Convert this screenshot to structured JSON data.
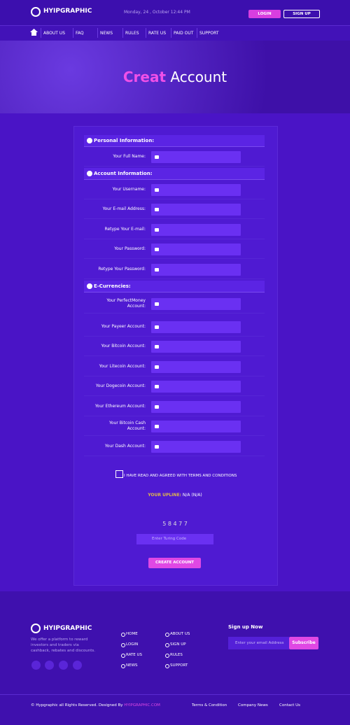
{
  "header": {
    "logo": "HYIPGRAPHIC",
    "date": "Monday, 24 , October 12:44 PM",
    "login": "LOGIN",
    "signup": "SIGN UP"
  },
  "nav": {
    "items": [
      "ABOUT US",
      "FAQ",
      "NEWS",
      "RULES",
      "RATE US",
      "PAID OUT",
      "SUPPORT"
    ]
  },
  "hero": {
    "title_accent": "Creat",
    "title_rest": "Account"
  },
  "form": {
    "sections": [
      {
        "title": "Personal Information:",
        "fields": [
          "Your Full Name:"
        ]
      },
      {
        "title": "Account Information:",
        "fields": [
          "Your Username:",
          "Your E-mail Address:",
          "Retype Your E-mail:",
          "Your Password:",
          "Retype Your Password:"
        ]
      },
      {
        "title": "E-Currencies:",
        "fields": [
          "Your PerfectMoney Account:",
          "Your Payeer Account:",
          "Your Bitcoin Account:",
          "Your Litecoin Account:",
          "Your Dogecoin Account:",
          "Your Ethereum Account:",
          "Your Bitcoin Cash Account:",
          "Your Dash Account:"
        ]
      }
    ],
    "terms": "I HAVE READ AND AGREED WITH TERMS AND CONDITIONS",
    "upline_label": "YOUR UPLINE:",
    "upline_value": "N/A (N/A)",
    "captcha": "5 8 4 7 7",
    "turing_placeholder": "Enter Turing Code",
    "submit": "CREATE ACCOUNT"
  },
  "footer": {
    "logo": "HYIPGRAPHIC",
    "description": "We offer a platform to reward investors and traders via cashback, rebates and discounts.",
    "links": [
      "HOME",
      "ABOUT US",
      "LOGIN",
      "SIGN UP",
      "RATE US",
      "RULES",
      "NEWS",
      "SUPPORT"
    ],
    "signup_title": "Sign up Now",
    "email_placeholder": "Enter your email Address",
    "subscribe": "Subscribe",
    "copyright": "© Hypgraphic all Rights Reserved. Designed By",
    "copyright_link": "HYIPGRAPHIC.COM",
    "bottom_links": [
      "Terms & Condition",
      "Company News",
      "Contact Us"
    ]
  }
}
